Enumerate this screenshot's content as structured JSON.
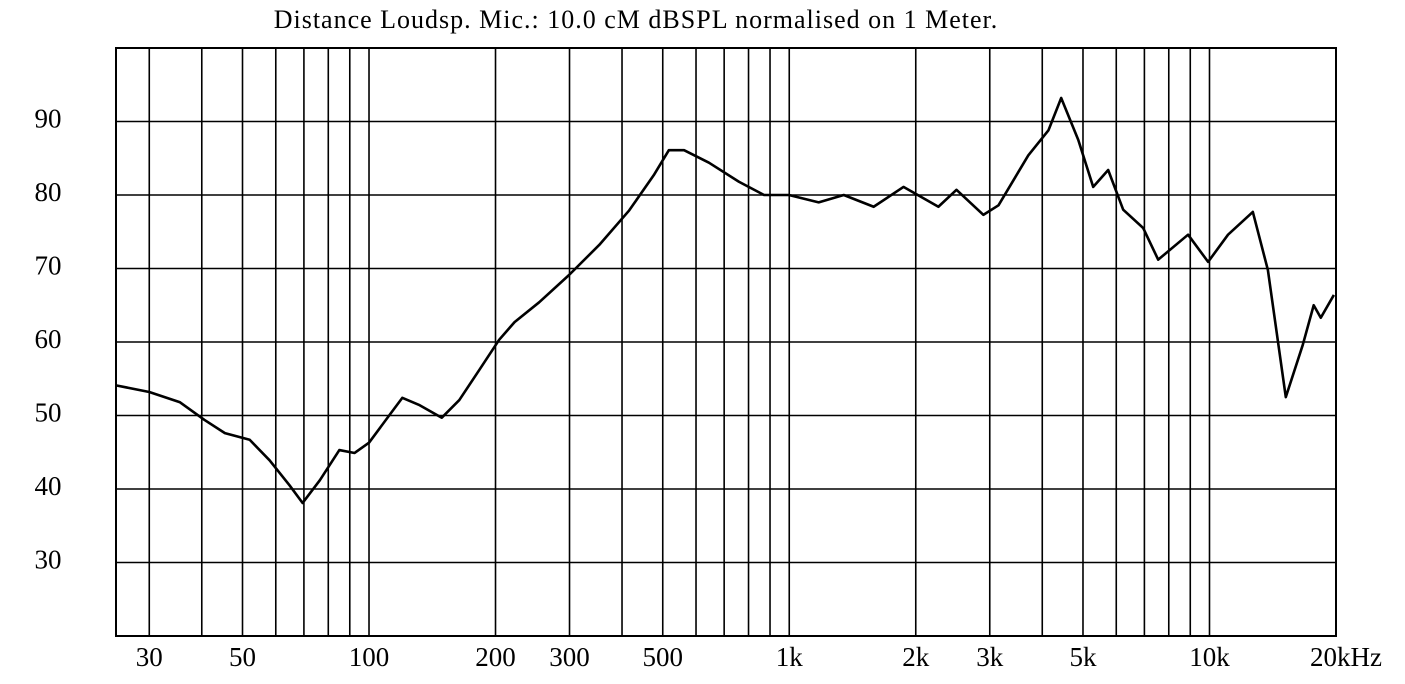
{
  "chart_data": {
    "type": "line",
    "title": "Distance Loudsp. Mic.: 10.0 cM dBSPL normalised on 1 Meter.",
    "xscale": "log",
    "grid": true,
    "xlim": [
      25,
      20000
    ],
    "ylim": [
      20,
      100
    ],
    "yticks": [
      30,
      40,
      50,
      60,
      70,
      80,
      90
    ],
    "xticks": [
      30,
      50,
      100,
      200,
      300,
      500,
      {
        "value": 1000,
        "label": "1k"
      },
      {
        "value": 2000,
        "label": "2k"
      },
      {
        "value": 3000,
        "label": "3k"
      },
      {
        "value": 5000,
        "label": "5k"
      },
      {
        "value": 10000,
        "label": "10k"
      },
      {
        "value": 20000,
        "label": "20kHz"
      }
    ],
    "xminor": [
      40,
      60,
      70,
      80,
      90,
      400,
      600,
      700,
      800,
      900,
      4000,
      6000,
      7000,
      8000,
      9000
    ],
    "x": [
      25,
      30,
      35.5,
      40.6,
      45.4,
      52,
      58,
      64.7,
      69.5,
      76.4,
      85,
      92.4,
      100,
      112,
      120,
      132,
      149,
      164,
      183,
      204,
      222,
      254,
      299,
      353,
      416,
      476,
      517,
      562,
      644,
      759,
      871,
      998,
      1175,
      1348,
      1588,
      1870,
      2264,
      2500,
      2896,
      3147,
      3706,
      4138,
      4437,
      4872,
      5288,
      5740,
      6232,
      6954,
      7550,
      8892,
      9925,
      11069,
      12680,
      13770,
      15190,
      16670,
      17700,
      18400,
      19770
    ],
    "series": [
      {
        "color": "#000000",
        "values": [
          54.1,
          53.2,
          51.8,
          49.4,
          47.6,
          46.7,
          43.9,
          40.5,
          38.1,
          41.2,
          45.3,
          44.9,
          46.3,
          50.1,
          52.4,
          51.4,
          49.7,
          52.1,
          56.2,
          60.3,
          62.7,
          65.4,
          69.1,
          73.2,
          77.9,
          82.7,
          86.1,
          86.1,
          84.4,
          81.8,
          80,
          80,
          79,
          80,
          78.4,
          81.1,
          78.4,
          80.7,
          77.3,
          78.6,
          85.4,
          88.8,
          93.2,
          87.5,
          81.1,
          83.4,
          78,
          75.5,
          71.2,
          74.6,
          70.9,
          74.6,
          77.7,
          69.8,
          52.5,
          59.6,
          65,
          63.3,
          66.4
        ]
      }
    ]
  }
}
